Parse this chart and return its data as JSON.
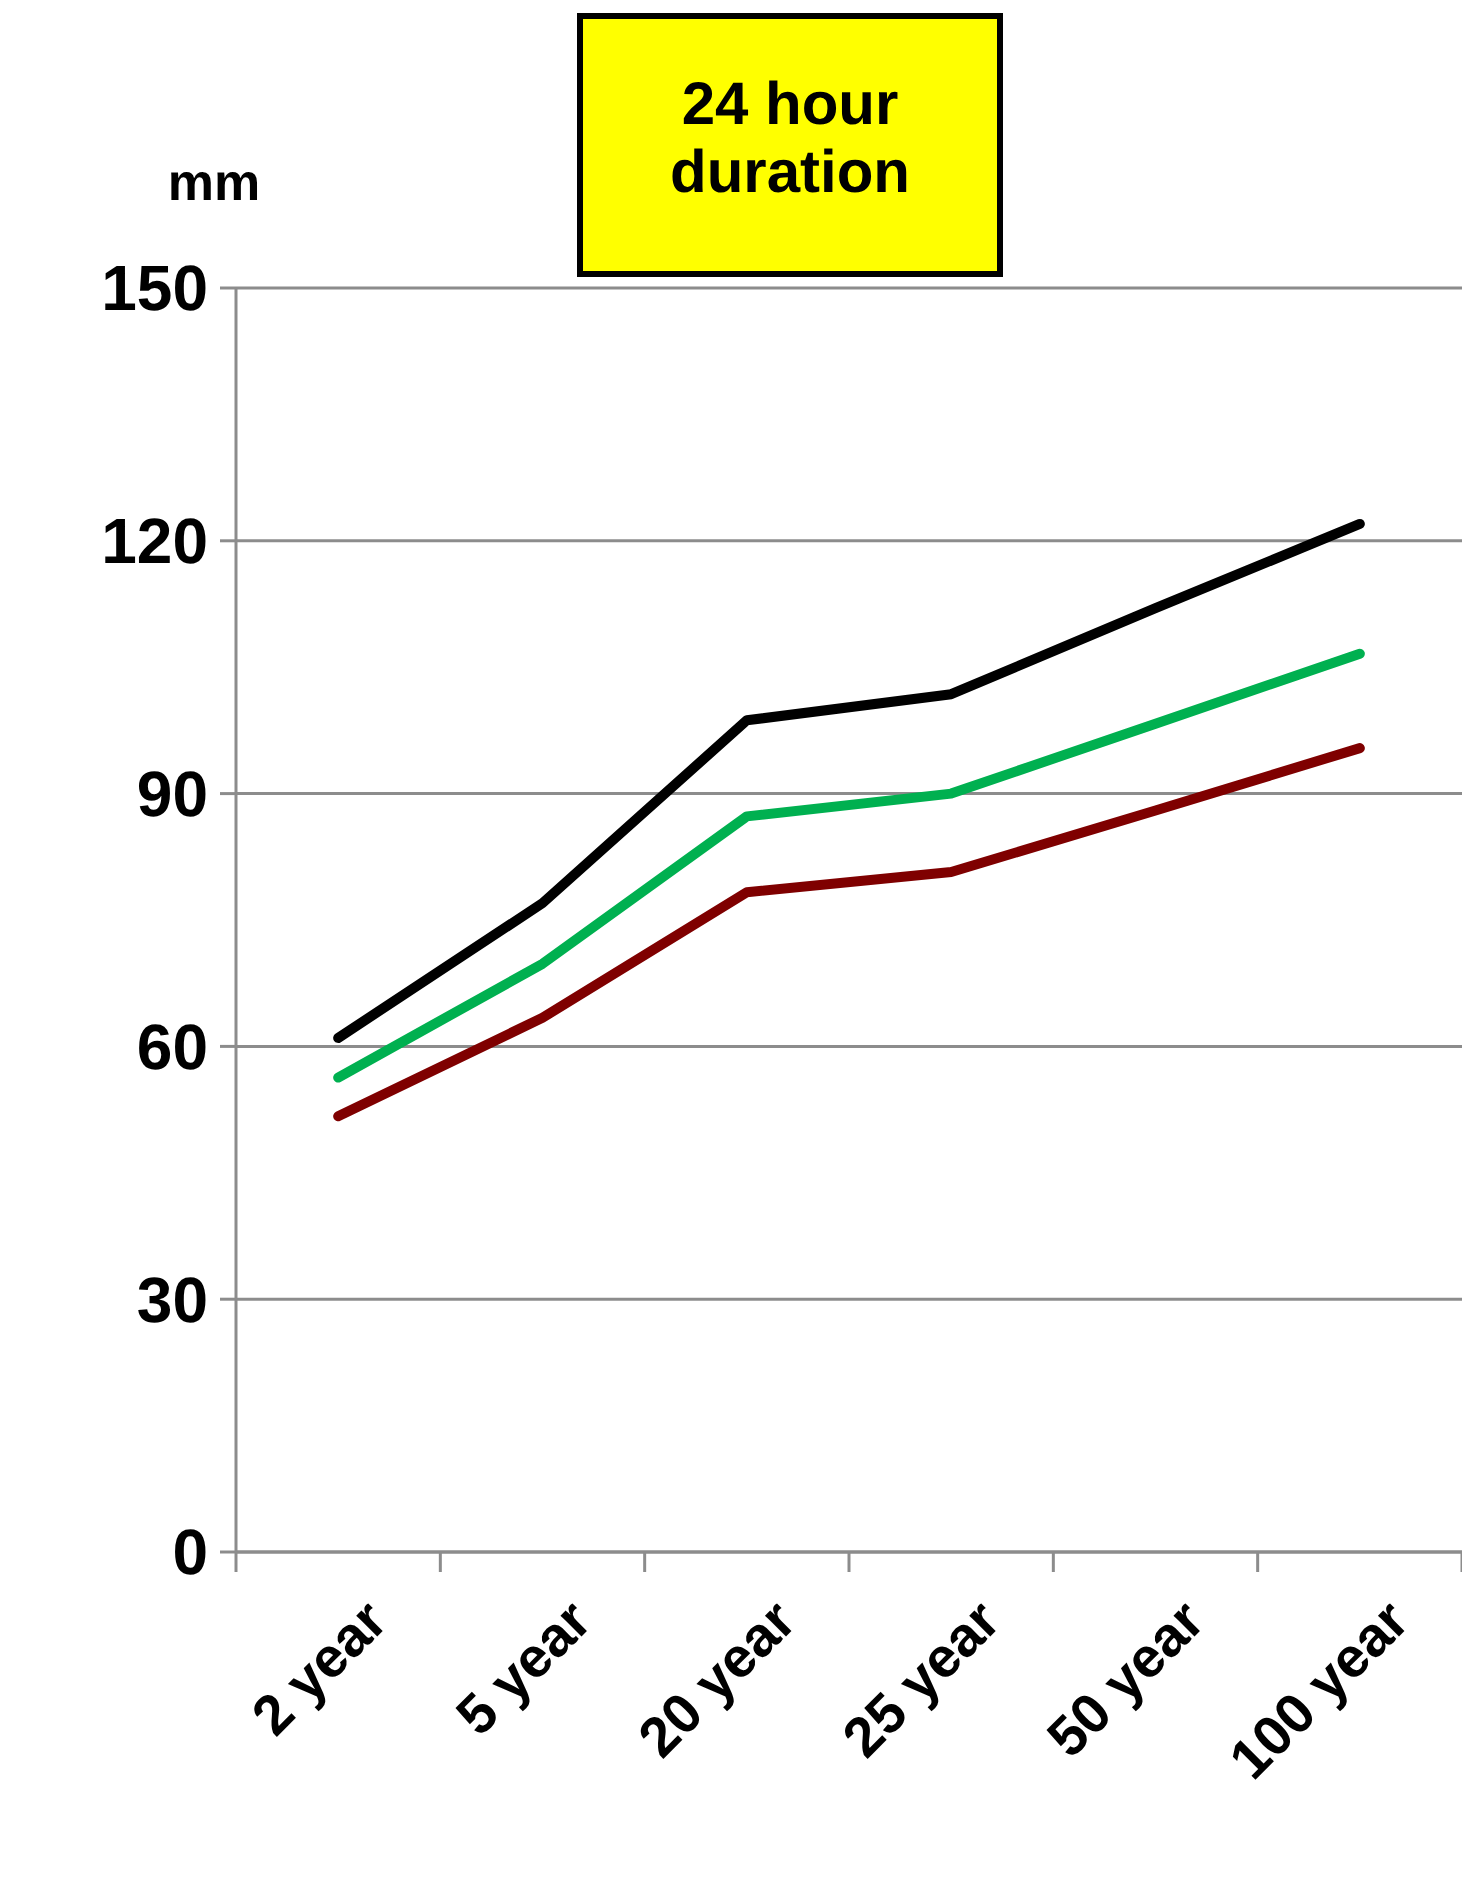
{
  "chart_data": {
    "type": "line",
    "title": "24 hour\nduration",
    "ylabel": "mm",
    "categories": [
      "2 year",
      "5 year",
      "20 year",
      "25 year",
      "50 year",
      "100 year"
    ],
    "series": [
      {
        "color": "#000000",
        "values": [
          61,
          77,
          98.7,
          101.8,
          112,
          122
        ]
      },
      {
        "color": "#00b050",
        "values": [
          56.3,
          69.8,
          87.3,
          90,
          98.3,
          106.6
        ]
      },
      {
        "color": "#7f0000",
        "values": [
          51.7,
          63.4,
          78.3,
          80.7,
          88,
          95.4
        ]
      }
    ],
    "ylim": [
      0,
      150
    ],
    "yticks": [
      0,
      30,
      60,
      90,
      120,
      150
    ],
    "grid": "y",
    "marker": "none",
    "line_style": "solid"
  }
}
